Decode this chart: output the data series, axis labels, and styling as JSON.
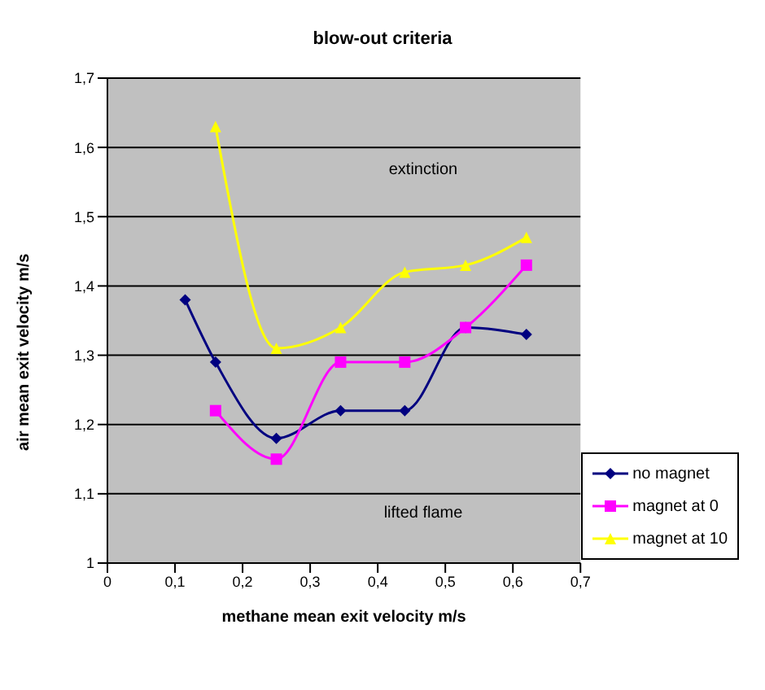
{
  "chart_data": {
    "type": "line",
    "title": "blow-out criteria",
    "xlabel": "methane mean exit velocity m/s",
    "ylabel": "air mean exit velocity m/s",
    "xlim": [
      0,
      0.7
    ],
    "xticks": [
      0,
      {
        "value": 0.1,
        "label": "0,1"
      },
      {
        "value": 0.2,
        "label": "0,2"
      },
      {
        "value": 0.3,
        "label": "0,3"
      },
      {
        "value": 0.4,
        "label": "0,4"
      },
      {
        "value": 0.5,
        "label": "0,5"
      },
      {
        "value": 0.6,
        "label": "0,6"
      },
      {
        "value": 0.7,
        "label": "0,7"
      }
    ],
    "ylim": [
      1,
      1.7
    ],
    "yticks": [
      1,
      {
        "value": 1.1,
        "label": "1,1"
      },
      {
        "value": 1.2,
        "label": "1,2"
      },
      {
        "value": 1.3,
        "label": "1,3"
      },
      {
        "value": 1.4,
        "label": "1,4"
      },
      {
        "value": 1.5,
        "label": "1,5"
      },
      {
        "value": 1.6,
        "label": "1,6"
      },
      {
        "value": 1.7,
        "label": "1,7"
      }
    ],
    "grid": "y",
    "legend": "bottom right",
    "annotations": [
      "extinction",
      "lifted flame"
    ],
    "series": [
      {
        "name": "no magnet",
        "color": "#000080",
        "marker": "diamond",
        "x": [
          0.115,
          0.16,
          0.25,
          0.345,
          0.44,
          0.53,
          0.62
        ],
        "values": [
          1.38,
          1.29,
          1.18,
          1.22,
          1.22,
          1.34,
          1.33
        ]
      },
      {
        "name": "magnet at 0",
        "color": "#ff00ff",
        "marker": "square",
        "x": [
          0.16,
          0.25,
          0.345,
          0.44,
          0.53,
          0.62
        ],
        "values": [
          1.22,
          1.15,
          1.29,
          1.29,
          1.34,
          1.43
        ]
      },
      {
        "name": "magnet at 10",
        "color": "#ffff00",
        "marker": "triangle",
        "x": [
          0.16,
          0.25,
          0.345,
          0.44,
          0.53,
          0.62
        ],
        "values": [
          1.63,
          1.31,
          1.34,
          1.42,
          1.43,
          1.47
        ]
      }
    ]
  }
}
